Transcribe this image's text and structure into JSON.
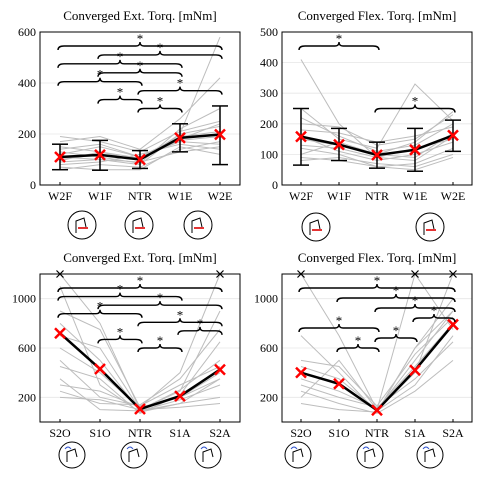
{
  "chart_data": [
    {
      "type": "line",
      "title": "Converged Ext. Torq. [mNm]",
      "categories": [
        "W2F",
        "W1F",
        "NTR",
        "W1E",
        "W2E"
      ],
      "ylim": [
        0,
        600
      ],
      "yticks": [
        0,
        200,
        400,
        600
      ],
      "grid": true,
      "mean": {
        "values": [
          110,
          118,
          100,
          185,
          198
        ],
        "color": "#ff0000"
      },
      "error": [
        [
          60,
          160
        ],
        [
          58,
          175
        ],
        [
          65,
          135
        ],
        [
          130,
          240
        ],
        [
          80,
          310
        ]
      ],
      "subjects": [
        [
          120,
          150,
          110,
          170,
          160
        ],
        [
          90,
          100,
          90,
          130,
          150
        ],
        [
          150,
          130,
          95,
          200,
          230
        ],
        [
          60,
          80,
          70,
          140,
          170
        ],
        [
          100,
          120,
          100,
          180,
          240
        ],
        [
          130,
          110,
          85,
          220,
          300
        ],
        [
          80,
          90,
          120,
          160,
          140
        ],
        [
          170,
          190,
          140,
          260,
          420
        ],
        [
          110,
          100,
          80,
          200,
          580
        ],
        [
          140,
          160,
          110,
          190,
          210
        ],
        [
          70,
          60,
          60,
          150,
          120
        ],
        [
          190,
          170,
          130,
          210,
          250
        ],
        [
          95,
          130,
          105,
          175,
          190
        ]
      ],
      "significance": [
        {
          "from": 0,
          "to": 4,
          "label": "*"
        },
        {
          "from": 1,
          "to": 4,
          "label": "*"
        },
        {
          "from": 0,
          "to": 3,
          "label": "*"
        },
        {
          "from": 1,
          "to": 3,
          "label": "*"
        },
        {
          "from": 0,
          "to": 2,
          "label": "*"
        },
        {
          "from": 2,
          "to": 4,
          "label": "*"
        },
        {
          "from": 1,
          "to": 2,
          "label": "*"
        },
        {
          "from": 2,
          "to": 3,
          "label": "*"
        }
      ]
    },
    {
      "type": "line",
      "title": "Converged Flex. Torq. [mNm]",
      "categories": [
        "W2F",
        "W1F",
        "NTR",
        "W1E",
        "W2E"
      ],
      "ylim": [
        0,
        500
      ],
      "yticks": [
        0,
        100,
        200,
        300,
        400,
        500
      ],
      "grid": true,
      "mean": {
        "values": [
          158,
          132,
          98,
          115,
          162
        ],
        "color": "#ff0000"
      },
      "error": [
        [
          65,
          250
        ],
        [
          80,
          185
        ],
        [
          55,
          140
        ],
        [
          45,
          185
        ],
        [
          110,
          212
        ]
      ],
      "subjects": [
        [
          410,
          200,
          90,
          80,
          160
        ],
        [
          250,
          150,
          120,
          330,
          210
        ],
        [
          160,
          110,
          80,
          100,
          140
        ],
        [
          100,
          140,
          100,
          90,
          170
        ],
        [
          200,
          190,
          130,
          150,
          230
        ],
        [
          80,
          90,
          70,
          60,
          100
        ],
        [
          130,
          120,
          90,
          120,
          150
        ],
        [
          180,
          170,
          140,
          160,
          190
        ],
        [
          120,
          100,
          60,
          70,
          120
        ],
        [
          220,
          160,
          110,
          130,
          200
        ],
        [
          90,
          80,
          60,
          50,
          90
        ],
        [
          150,
          130,
          100,
          140,
          240
        ]
      ],
      "significance": [
        {
          "from": 0,
          "to": 2,
          "label": "*"
        },
        {
          "from": 2,
          "to": 4,
          "label": "*"
        }
      ]
    },
    {
      "type": "line",
      "title": "Converged Ext. Torq. [mNm]",
      "categories": [
        "S2O",
        "S1O",
        "NTR",
        "S1A",
        "S2A"
      ],
      "ylim": [
        0,
        1200
      ],
      "yticks": [
        200,
        600,
        1000
      ],
      "grid": true,
      "mean": {
        "values": [
          720,
          430,
          105,
          210,
          425
        ],
        "color": "#ff0000"
      },
      "error": [],
      "outliers": [
        {
          "x": 0,
          "y": 1200
        },
        {
          "x": 4,
          "y": 1200
        }
      ],
      "subjects": [
        [
          1200,
          800,
          100,
          250,
          900
        ],
        [
          1100,
          300,
          80,
          150,
          350
        ],
        [
          900,
          750,
          120,
          200,
          400
        ],
        [
          800,
          500,
          90,
          180,
          300
        ],
        [
          700,
          600,
          100,
          260,
          500
        ],
        [
          600,
          400,
          110,
          200,
          350
        ],
        [
          500,
          200,
          130,
          300,
          450
        ],
        [
          450,
          350,
          70,
          220,
          650
        ],
        [
          350,
          100,
          90,
          150,
          200
        ],
        [
          300,
          250,
          120,
          400,
          1200
        ],
        [
          250,
          150,
          140,
          350,
          750
        ],
        [
          200,
          180,
          100,
          120,
          150
        ]
      ],
      "significance": [
        {
          "from": 0,
          "to": 4,
          "label": "*"
        },
        {
          "from": 0,
          "to": 3,
          "label": "*"
        },
        {
          "from": 1,
          "to": 4,
          "label": "*"
        },
        {
          "from": 0,
          "to": 2,
          "label": "*"
        },
        {
          "from": 2,
          "to": 4,
          "label": "*"
        },
        {
          "from": 3,
          "to": 4,
          "label": "*"
        },
        {
          "from": 1,
          "to": 2,
          "label": "*"
        },
        {
          "from": 2,
          "to": 3,
          "label": "*"
        }
      ]
    },
    {
      "type": "line",
      "title": "Converged Flex. Torq. [mNm]",
      "categories": [
        "S2O",
        "S1O",
        "NTR",
        "S1A",
        "S2A"
      ],
      "ylim": [
        0,
        1200
      ],
      "yticks": [
        200,
        600,
        1000
      ],
      "grid": true,
      "mean": {
        "values": [
          400,
          310,
          95,
          420,
          790
        ],
        "color": "#ff0000"
      },
      "error": [],
      "outliers": [
        {
          "x": 0,
          "y": 1200
        },
        {
          "x": 3,
          "y": 1200
        },
        {
          "x": 4,
          "y": 1200
        }
      ],
      "subjects": [
        [
          1200,
          700,
          100,
          400,
          1200
        ],
        [
          700,
          400,
          80,
          600,
          1000
        ],
        [
          450,
          350,
          100,
          500,
          900
        ],
        [
          400,
          300,
          90,
          300,
          700
        ],
        [
          350,
          250,
          110,
          450,
          800
        ],
        [
          300,
          200,
          120,
          350,
          650
        ],
        [
          250,
          150,
          70,
          250,
          500
        ],
        [
          200,
          500,
          100,
          1200,
          750
        ],
        [
          150,
          100,
          80,
          600,
          900
        ],
        [
          500,
          450,
          130,
          550,
          850
        ]
      ],
      "significance": [
        {
          "from": 0,
          "to": 4,
          "label": "*"
        },
        {
          "from": 1,
          "to": 4,
          "label": "*"
        },
        {
          "from": 2,
          "to": 4,
          "label": "*"
        },
        {
          "from": 3,
          "to": 4,
          "label": "*"
        },
        {
          "from": 0,
          "to": 2,
          "label": "*"
        },
        {
          "from": 2,
          "to": 3,
          "label": "*"
        },
        {
          "from": 1,
          "to": 2,
          "label": "*"
        }
      ]
    }
  ],
  "icons": {
    "row1": [
      "wrist-flexed-2-icon",
      "wrist-flexed-1-icon",
      "wrist-neutral-icon",
      "wrist-extended-2-icon"
    ],
    "row2": [
      "supination-2-icon",
      "wrist-neutral-icon",
      "pronation-2-icon"
    ]
  }
}
